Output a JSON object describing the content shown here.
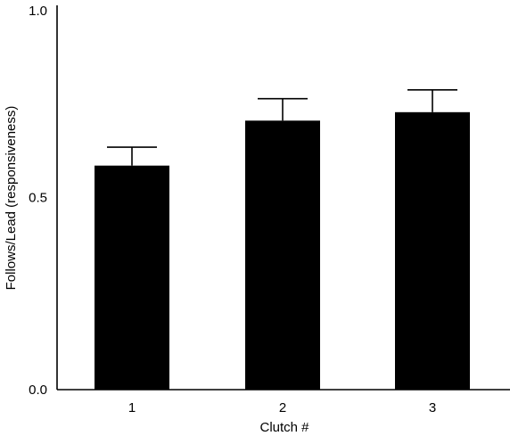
{
  "chart_data": {
    "type": "bar",
    "title": "",
    "xlabel": "Clutch #",
    "ylabel": "Follows/Lead (responsiveness)",
    "categories": [
      "1",
      "2",
      "3"
    ],
    "values": [
      0.583,
      0.7,
      0.722
    ],
    "error_bars": [
      0.048,
      0.057,
      0.058
    ],
    "ylim": [
      0.0,
      1.0
    ],
    "y_ticks": [
      {
        "value": 0.0,
        "label": "0.0"
      },
      {
        "value": 0.5,
        "label": "0.5"
      },
      {
        "value": 1.0,
        "label": "1.0"
      }
    ],
    "grid": false,
    "legend": "none",
    "colors": {
      "bar": "#000000",
      "axis": "#000000",
      "background": "#ffffff"
    }
  }
}
